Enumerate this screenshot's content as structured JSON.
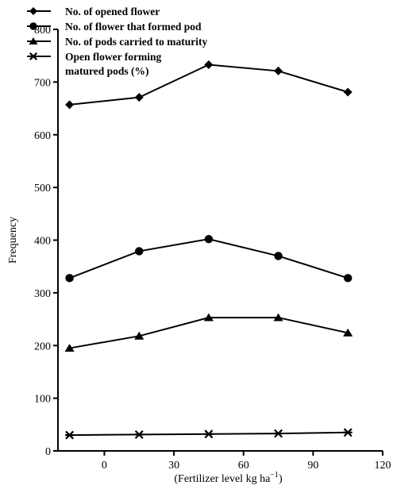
{
  "chart_data": {
    "type": "line",
    "xlabel": "(Fertilizer level kg ha",
    "xlabel_sup": "−1",
    "xlabel_suffix": ")",
    "ylabel": "Frequency",
    "xlim": [
      -20,
      120
    ],
    "ylim": [
      0,
      800
    ],
    "xticks": [
      0,
      30,
      60,
      90,
      120
    ],
    "yticks": [
      0,
      100,
      200,
      300,
      400,
      500,
      600,
      700,
      800
    ],
    "x": [
      -15,
      15,
      45,
      75,
      105
    ],
    "legend_position": "top-left",
    "series": [
      {
        "name": "No. of opened flower",
        "marker": "diamond",
        "values": [
          657,
          671,
          733,
          721,
          681
        ]
      },
      {
        "name": "No. of flower that formed pod",
        "marker": "circle",
        "values": [
          328,
          379,
          402,
          370,
          328
        ]
      },
      {
        "name": "No. of pods carried to maturity",
        "marker": "triangle",
        "values": [
          195,
          218,
          253,
          253,
          224
        ]
      },
      {
        "name": "Open flower forming\nmatured pods (%)",
        "marker": "star",
        "values": [
          30,
          31,
          32,
          33,
          35
        ]
      }
    ],
    "colors": {
      "line": "#000000",
      "marker": "#000000"
    }
  }
}
